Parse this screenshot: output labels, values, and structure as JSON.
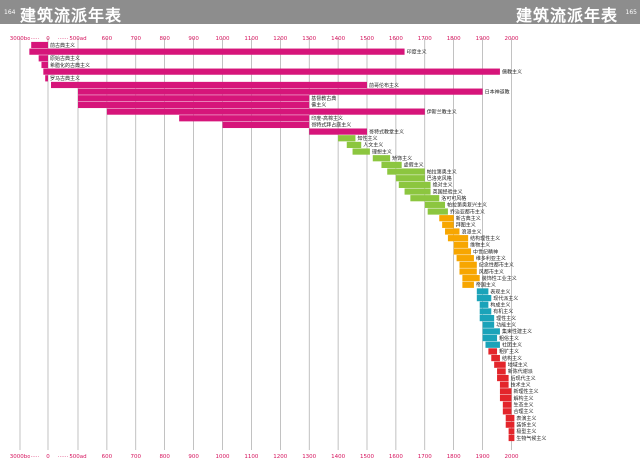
{
  "header": {
    "title_left": "建筑流派年表",
    "title_right": "建筑流派年表",
    "page_left": "164",
    "page_right": "165"
  },
  "chart_data": {
    "type": "bar",
    "title": "建筑流派年表",
    "axis": {
      "tick_labels": [
        "3000bc",
        "0",
        "500ad",
        "600",
        "700",
        "800",
        "900",
        "1000",
        "1100",
        "1200",
        "1300",
        "1400",
        "1500",
        "1600",
        "1700",
        "1800",
        "1900",
        "2000"
      ],
      "tick_values": [
        -3000,
        0,
        500,
        600,
        700,
        800,
        900,
        1000,
        1100,
        1200,
        1300,
        1400,
        1500,
        1600,
        1700,
        1800,
        1900,
        2000
      ],
      "break_marker": "······",
      "grid": true,
      "position": "top and bottom"
    },
    "colors": {
      "magenta": "#d6157a",
      "green": "#8cc63f",
      "orange": "#f7a600",
      "teal": "#1ba3b9",
      "red": "#e3252b"
    },
    "series": [
      {
        "label": "前古典主义",
        "start": -1800,
        "end": 0,
        "color": "magenta"
      },
      {
        "label": "印度主义",
        "start": -2000,
        "end": 1630,
        "color": "magenta"
      },
      {
        "label": "原始古典主义",
        "start": -1000,
        "end": 0,
        "color": "magenta"
      },
      {
        "label": "希腊化的古典主义",
        "start": -700,
        "end": 0,
        "color": "magenta"
      },
      {
        "label": "儒教主义",
        "start": -500,
        "end": 1960,
        "color": "magenta"
      },
      {
        "label": "罗马古典主义",
        "start": -300,
        "end": 0,
        "color": "magenta"
      },
      {
        "label": "前哥伦布主义",
        "start": 50,
        "end": 1500,
        "color": "magenta"
      },
      {
        "label": "日本神道教",
        "start": 500,
        "end": 1900,
        "color": "magenta"
      },
      {
        "label": "基督教古典",
        "start": 500,
        "end": 1300,
        "color": "magenta"
      },
      {
        "label": "佛主义",
        "start": 500,
        "end": 1300,
        "color": "magenta"
      },
      {
        "label": "伊斯兰教主义",
        "start": 600,
        "end": 1700,
        "color": "magenta"
      },
      {
        "label": "印度-高棉主义",
        "start": 850,
        "end": 1300,
        "color": "magenta"
      },
      {
        "label": "哥特式拜占庭主义",
        "start": 1000,
        "end": 1300,
        "color": "magenta"
      },
      {
        "label": "哥特式教堂主义",
        "start": 1300,
        "end": 1500,
        "color": "magenta"
      },
      {
        "label": "知性主义",
        "start": 1400,
        "end": 1460,
        "color": "green"
      },
      {
        "label": "人文主义",
        "start": 1430,
        "end": 1480,
        "color": "green"
      },
      {
        "label": "理想主义",
        "start": 1450,
        "end": 1510,
        "color": "green"
      },
      {
        "label": "矫饰主义",
        "start": 1520,
        "end": 1580,
        "color": "green"
      },
      {
        "label": "虚假主义",
        "start": 1550,
        "end": 1620,
        "color": "green"
      },
      {
        "label": "帕拉第奥主义",
        "start": 1570,
        "end": 1700,
        "color": "green"
      },
      {
        "label": "巴洛克风格",
        "start": 1600,
        "end": 1700,
        "color": "green"
      },
      {
        "label": "绝对主义",
        "start": 1610,
        "end": 1720,
        "color": "green"
      },
      {
        "label": "英国经验主义",
        "start": 1630,
        "end": 1720,
        "color": "green"
      },
      {
        "label": "洛可可风格",
        "start": 1650,
        "end": 1750,
        "color": "green"
      },
      {
        "label": "帕拉第奥复兴主义",
        "start": 1700,
        "end": 1770,
        "color": "green"
      },
      {
        "label": "乔治亚都市主义",
        "start": 1710,
        "end": 1780,
        "color": "green"
      },
      {
        "label": "新古典主义",
        "start": 1750,
        "end": 1800,
        "color": "orange"
      },
      {
        "label": "拜图主义",
        "start": 1760,
        "end": 1800,
        "color": "orange"
      },
      {
        "label": "浪漫主义",
        "start": 1770,
        "end": 1820,
        "color": "orange"
      },
      {
        "label": "结构理性主义",
        "start": 1780,
        "end": 1850,
        "color": "orange"
      },
      {
        "label": "维物主义",
        "start": 1800,
        "end": 1850,
        "color": "orange"
      },
      {
        "label": "中世纪精神",
        "start": 1800,
        "end": 1860,
        "color": "orange"
      },
      {
        "label": "维多利亚主义",
        "start": 1810,
        "end": 1870,
        "color": "orange"
      },
      {
        "label": "纪念性都市主义",
        "start": 1820,
        "end": 1880,
        "color": "orange"
      },
      {
        "label": "风都市主义",
        "start": 1820,
        "end": 1880,
        "color": "orange"
      },
      {
        "label": "装饰性工业主义",
        "start": 1830,
        "end": 1890,
        "color": "orange"
      },
      {
        "label": "帝国主义",
        "start": 1830,
        "end": 1870,
        "color": "orange"
      },
      {
        "label": "表现主义",
        "start": 1880,
        "end": 1920,
        "color": "teal"
      },
      {
        "label": "现代派主义",
        "start": 1880,
        "end": 1930,
        "color": "teal"
      },
      {
        "label": "构成主义",
        "start": 1890,
        "end": 1920,
        "color": "teal"
      },
      {
        "label": "有机主义",
        "start": 1890,
        "end": 1930,
        "color": "teal"
      },
      {
        "label": "理性主义",
        "start": 1890,
        "end": 1940,
        "color": "teal"
      },
      {
        "label": "功能主义",
        "start": 1900,
        "end": 1940,
        "color": "teal"
      },
      {
        "label": "集束性建主义",
        "start": 1900,
        "end": 1960,
        "color": "teal"
      },
      {
        "label": "粗俗主义",
        "start": 1900,
        "end": 1950,
        "color": "teal"
      },
      {
        "label": "社团主义",
        "start": 1910,
        "end": 1960,
        "color": "teal"
      },
      {
        "label": "粗犷主义",
        "start": 1920,
        "end": 1950,
        "color": "red"
      },
      {
        "label": "结构主义",
        "start": 1930,
        "end": 1960,
        "color": "red"
      },
      {
        "label": "地域主义",
        "start": 1940,
        "end": 1980,
        "color": "red"
      },
      {
        "label": "新陈代谢派",
        "start": 1950,
        "end": 1980,
        "color": "red"
      },
      {
        "label": "后现代主义",
        "start": 1950,
        "end": 1990,
        "color": "red"
      },
      {
        "label": "技术主义",
        "start": 1960,
        "end": 1990,
        "color": "red"
      },
      {
        "label": "新理性主义",
        "start": 1960,
        "end": 2000,
        "color": "red"
      },
      {
        "label": "解构主义",
        "start": 1960,
        "end": 2000,
        "color": "red"
      },
      {
        "label": "生态主义",
        "start": 1970,
        "end": 2000,
        "color": "red"
      },
      {
        "label": "合理主义",
        "start": 1970,
        "end": 2000,
        "color": "red"
      },
      {
        "label": "表演主义",
        "start": 1980,
        "end": 2010,
        "color": "red"
      },
      {
        "label": "装饰主义",
        "start": 1980,
        "end": 2010,
        "color": "red"
      },
      {
        "label": "极型主义",
        "start": 1990,
        "end": 2010,
        "color": "red"
      },
      {
        "label": "生物气候主义",
        "start": 1990,
        "end": 2010,
        "color": "red"
      }
    ]
  }
}
